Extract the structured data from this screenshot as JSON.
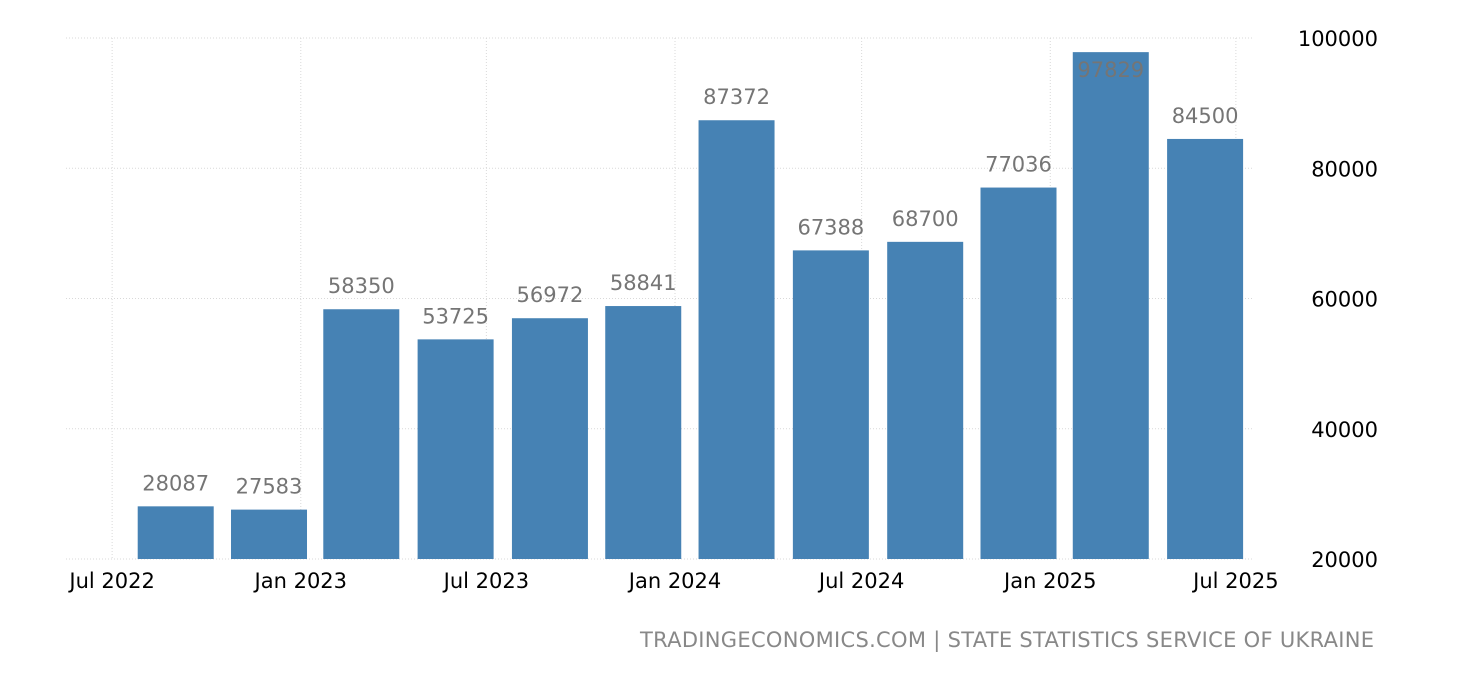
{
  "chart_data": {
    "type": "bar",
    "x": [
      "2022-09",
      "2022-12",
      "2023-03",
      "2023-06",
      "2023-09",
      "2023-12",
      "2024-03",
      "2024-06",
      "2024-09",
      "2024-12",
      "2025-03",
      "2025-06"
    ],
    "values": [
      28087,
      27583,
      58350,
      53725,
      56972,
      58841,
      87372,
      67388,
      68700,
      77036,
      97829,
      84500
    ],
    "data_labels": [
      "28087",
      "27583",
      "58350",
      "53725",
      "56972",
      "58841",
      "87372",
      "67388",
      "68700",
      "77036",
      "97829",
      "84500"
    ],
    "x_ticks": [
      {
        "date": "2022-07",
        "label": "Jul 2022"
      },
      {
        "date": "2023-01",
        "label": "Jan 2023"
      },
      {
        "date": "2023-07",
        "label": "Jul 2023"
      },
      {
        "date": "2024-01",
        "label": "Jan 2024"
      },
      {
        "date": "2024-07",
        "label": "Jul 2024"
      },
      {
        "date": "2025-01",
        "label": "Jan 2025"
      },
      {
        "date": "2025-07",
        "label": "Jul 2025"
      }
    ],
    "y_ticks": [
      {
        "value": 20000,
        "label": "20000"
      },
      {
        "value": 40000,
        "label": "40000"
      },
      {
        "value": 60000,
        "label": "60000"
      },
      {
        "value": 80000,
        "label": "80000"
      },
      {
        "value": 100000,
        "label": "100000"
      }
    ],
    "ylim": [
      20000,
      100000
    ],
    "y_axis_side": "right",
    "grid": true,
    "bar_color": "#4682b4",
    "label_color": "#757575",
    "title": "",
    "xlabel": "",
    "ylabel": ""
  },
  "footer": {
    "source": "TRADINGECONOMICS.COM | STATE STATISTICS SERVICE OF UKRAINE"
  }
}
